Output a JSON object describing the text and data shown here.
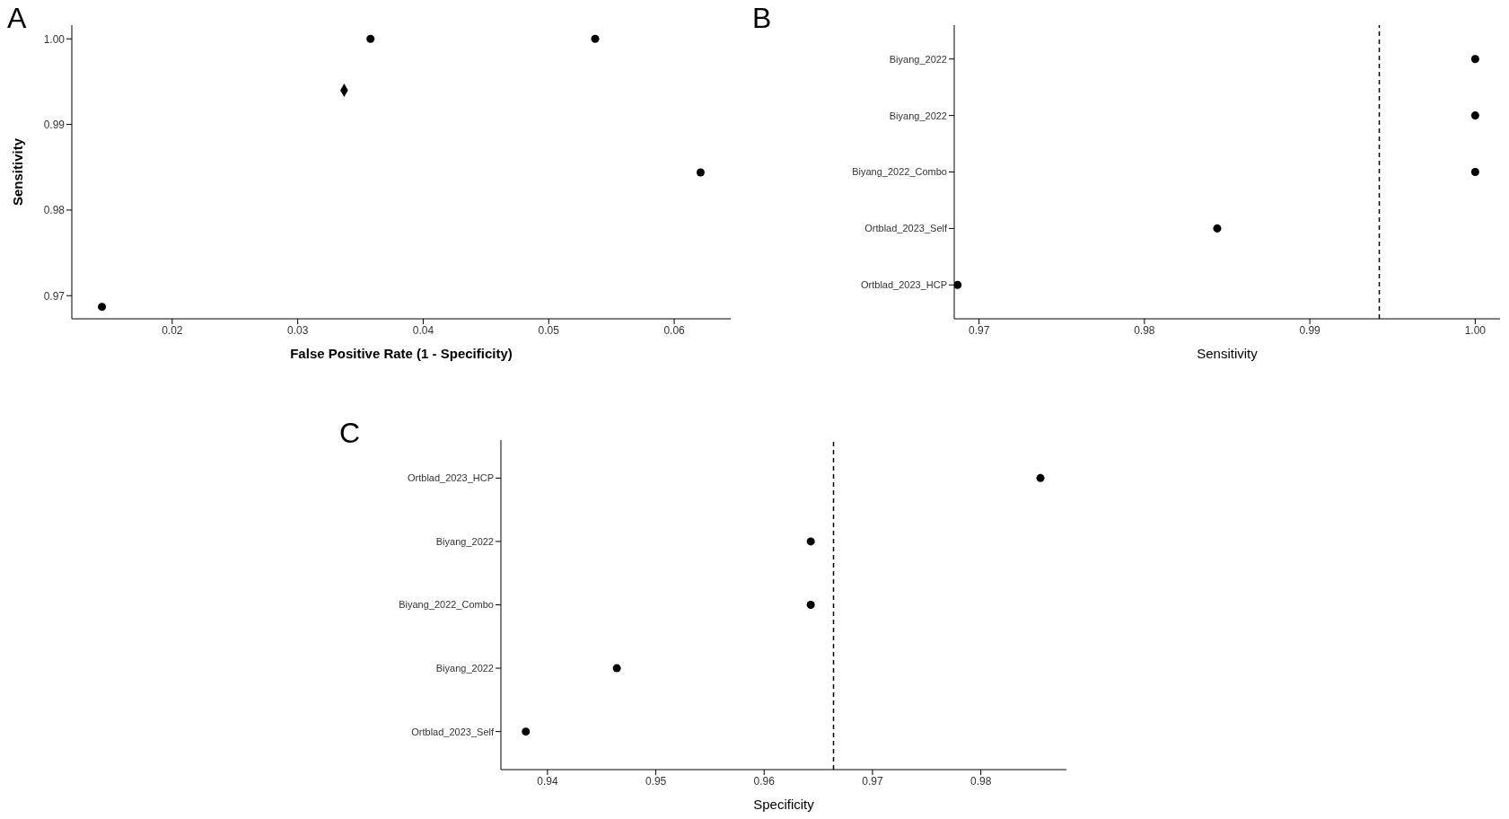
{
  "chart_data": [
    {
      "type": "scatter",
      "xlabel": "False Positive Rate (1 - Specificity)",
      "ylabel": "Sensitivity",
      "annotations": [
        "A"
      ],
      "series": [
        {
          "color": "#000000",
          "marker": "circle",
          "x": [
            0.0144,
            0.0358,
            0.0537,
            0.0621
          ],
          "values": [
            0.9687,
            1.0,
            1.0,
            0.9844
          ]
        },
        {
          "color": "#000000",
          "marker": "diamond",
          "x": [
            0.0337
          ],
          "values": [
            0.994
          ]
        }
      ],
      "xlim": [
        0.012,
        0.0645
      ],
      "xticks": [
        0.02,
        0.03,
        0.04,
        0.05,
        0.06
      ],
      "ylim": [
        0.9673,
        1.0016
      ],
      "yticks": [
        0.97,
        0.98,
        0.99,
        {
          "value": 1.0,
          "label": "1.00"
        }
      ]
    },
    {
      "type": "scatter",
      "orientation": "horizontal",
      "xlabel": "Sensitivity",
      "annotations": [
        "B"
      ],
      "categories": [
        "Biyang_2022",
        "Biyang_2022",
        "Biyang_2022_Combo",
        "Ortblad_2023_Self",
        "Ortblad_2023_HCP"
      ],
      "values": [
        1.0,
        1.0,
        1.0,
        0.9844,
        0.9687
      ],
      "color": "#000000",
      "marker": "circle",
      "xlim": [
        0.9685,
        1.0015
      ],
      "xticks": [
        0.97,
        0.98,
        0.99,
        {
          "value": 1.0,
          "label": "1.00"
        }
      ],
      "ref_lines": [
        {
          "axis": "x",
          "value": 0.9942,
          "line_style": "dashed",
          "color": "#000000"
        }
      ]
    },
    {
      "type": "scatter",
      "orientation": "horizontal",
      "xlabel": "Specificity",
      "annotations": [
        "C"
      ],
      "categories": [
        "Ortblad_2023_HCP",
        "Biyang_2022",
        "Biyang_2022_Combo",
        "Biyang_2022",
        "Ortblad_2023_Self"
      ],
      "values": [
        0.9855,
        0.9643,
        0.9643,
        0.9464,
        0.938
      ],
      "color": "#000000",
      "marker": "circle",
      "xlim": [
        0.9357,
        0.9879
      ],
      "xticks": [
        0.94,
        0.95,
        0.96,
        0.97,
        0.98
      ],
      "ref_lines": [
        {
          "axis": "x",
          "value": 0.9664,
          "line_style": "dashed",
          "color": "#000000"
        }
      ]
    }
  ]
}
